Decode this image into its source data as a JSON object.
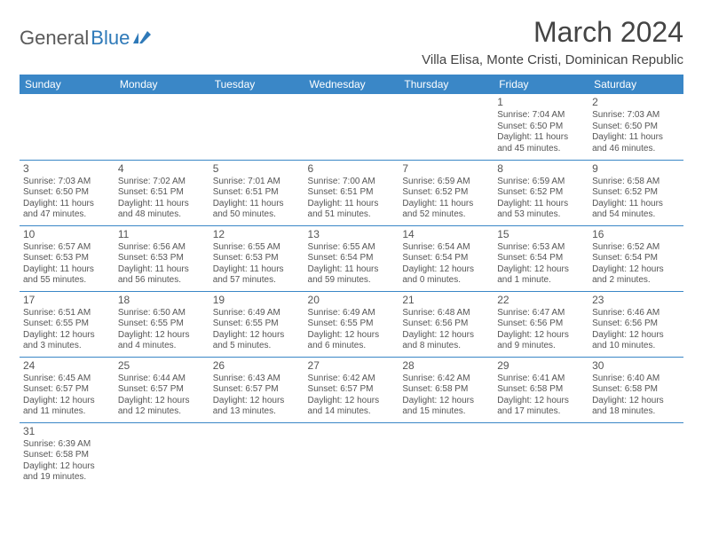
{
  "logo": {
    "part1": "General",
    "part2": "Blue"
  },
  "title": "March 2024",
  "location": "Villa Elisa, Monte Cristi, Dominican Republic",
  "colors": {
    "header_bg": "#3a87c7",
    "header_text": "#ffffff",
    "cell_border": "#3a87c7",
    "logo_gray": "#5a5a5a",
    "logo_blue": "#2e79b8",
    "body_text": "#555555"
  },
  "columns": [
    "Sunday",
    "Monday",
    "Tuesday",
    "Wednesday",
    "Thursday",
    "Friday",
    "Saturday"
  ],
  "weeks": [
    [
      null,
      null,
      null,
      null,
      null,
      {
        "d": "1",
        "sr": "7:04 AM",
        "ss": "6:50 PM",
        "dl": "11 hours and 45 minutes."
      },
      {
        "d": "2",
        "sr": "7:03 AM",
        "ss": "6:50 PM",
        "dl": "11 hours and 46 minutes."
      }
    ],
    [
      {
        "d": "3",
        "sr": "7:03 AM",
        "ss": "6:50 PM",
        "dl": "11 hours and 47 minutes."
      },
      {
        "d": "4",
        "sr": "7:02 AM",
        "ss": "6:51 PM",
        "dl": "11 hours and 48 minutes."
      },
      {
        "d": "5",
        "sr": "7:01 AM",
        "ss": "6:51 PM",
        "dl": "11 hours and 50 minutes."
      },
      {
        "d": "6",
        "sr": "7:00 AM",
        "ss": "6:51 PM",
        "dl": "11 hours and 51 minutes."
      },
      {
        "d": "7",
        "sr": "6:59 AM",
        "ss": "6:52 PM",
        "dl": "11 hours and 52 minutes."
      },
      {
        "d": "8",
        "sr": "6:59 AM",
        "ss": "6:52 PM",
        "dl": "11 hours and 53 minutes."
      },
      {
        "d": "9",
        "sr": "6:58 AM",
        "ss": "6:52 PM",
        "dl": "11 hours and 54 minutes."
      }
    ],
    [
      {
        "d": "10",
        "sr": "6:57 AM",
        "ss": "6:53 PM",
        "dl": "11 hours and 55 minutes."
      },
      {
        "d": "11",
        "sr": "6:56 AM",
        "ss": "6:53 PM",
        "dl": "11 hours and 56 minutes."
      },
      {
        "d": "12",
        "sr": "6:55 AM",
        "ss": "6:53 PM",
        "dl": "11 hours and 57 minutes."
      },
      {
        "d": "13",
        "sr": "6:55 AM",
        "ss": "6:54 PM",
        "dl": "11 hours and 59 minutes."
      },
      {
        "d": "14",
        "sr": "6:54 AM",
        "ss": "6:54 PM",
        "dl": "12 hours and 0 minutes."
      },
      {
        "d": "15",
        "sr": "6:53 AM",
        "ss": "6:54 PM",
        "dl": "12 hours and 1 minute."
      },
      {
        "d": "16",
        "sr": "6:52 AM",
        "ss": "6:54 PM",
        "dl": "12 hours and 2 minutes."
      }
    ],
    [
      {
        "d": "17",
        "sr": "6:51 AM",
        "ss": "6:55 PM",
        "dl": "12 hours and 3 minutes."
      },
      {
        "d": "18",
        "sr": "6:50 AM",
        "ss": "6:55 PM",
        "dl": "12 hours and 4 minutes."
      },
      {
        "d": "19",
        "sr": "6:49 AM",
        "ss": "6:55 PM",
        "dl": "12 hours and 5 minutes."
      },
      {
        "d": "20",
        "sr": "6:49 AM",
        "ss": "6:55 PM",
        "dl": "12 hours and 6 minutes."
      },
      {
        "d": "21",
        "sr": "6:48 AM",
        "ss": "6:56 PM",
        "dl": "12 hours and 8 minutes."
      },
      {
        "d": "22",
        "sr": "6:47 AM",
        "ss": "6:56 PM",
        "dl": "12 hours and 9 minutes."
      },
      {
        "d": "23",
        "sr": "6:46 AM",
        "ss": "6:56 PM",
        "dl": "12 hours and 10 minutes."
      }
    ],
    [
      {
        "d": "24",
        "sr": "6:45 AM",
        "ss": "6:57 PM",
        "dl": "12 hours and 11 minutes."
      },
      {
        "d": "25",
        "sr": "6:44 AM",
        "ss": "6:57 PM",
        "dl": "12 hours and 12 minutes."
      },
      {
        "d": "26",
        "sr": "6:43 AM",
        "ss": "6:57 PM",
        "dl": "12 hours and 13 minutes."
      },
      {
        "d": "27",
        "sr": "6:42 AM",
        "ss": "6:57 PM",
        "dl": "12 hours and 14 minutes."
      },
      {
        "d": "28",
        "sr": "6:42 AM",
        "ss": "6:58 PM",
        "dl": "12 hours and 15 minutes."
      },
      {
        "d": "29",
        "sr": "6:41 AM",
        "ss": "6:58 PM",
        "dl": "12 hours and 17 minutes."
      },
      {
        "d": "30",
        "sr": "6:40 AM",
        "ss": "6:58 PM",
        "dl": "12 hours and 18 minutes."
      }
    ],
    [
      {
        "d": "31",
        "sr": "6:39 AM",
        "ss": "6:58 PM",
        "dl": "12 hours and 19 minutes."
      },
      null,
      null,
      null,
      null,
      null,
      null
    ]
  ]
}
